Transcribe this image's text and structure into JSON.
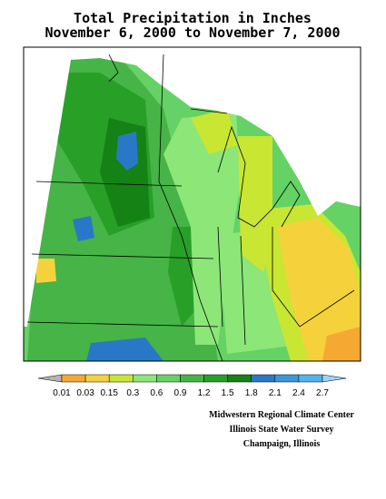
{
  "header": {
    "title": "Total Precipitation in Inches",
    "subtitle": "November 6, 2000 to November 7, 2000"
  },
  "legend": {
    "labels": [
      "0.01",
      "0.03",
      "0.15",
      "0.3",
      "0.6",
      "0.9",
      "1.2",
      "1.5",
      "1.8",
      "2.1",
      "2.4",
      "2.7"
    ],
    "colors": [
      "#b4b4b4",
      "#f5a832",
      "#f5d23c",
      "#c8e632",
      "#8ce678",
      "#64d264",
      "#46b446",
      "#28a028",
      "#148214",
      "#2878c8",
      "#3c96dc",
      "#50b4f0",
      "#a0d2f5"
    ]
  },
  "credits": [
    "Midwestern Regional Climate Center",
    "Illinois State Water Survey",
    "Champaign, Illinois"
  ]
}
